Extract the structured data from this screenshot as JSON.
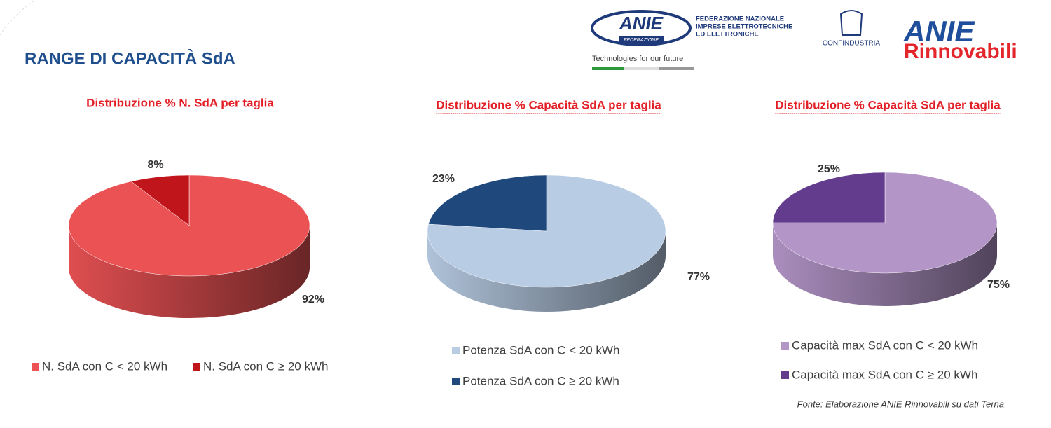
{
  "header": {
    "title": "RANGE DI CAPACITÀ SdA",
    "logo_anie": "ANIE",
    "logo_anie_sub": "FEDERAZIONE",
    "logo_federazione": [
      "FEDERAZIONE NAZIONALE",
      "IMPRESE ELETTROTECNICHE",
      "ED ELETTRONICHE"
    ],
    "logo_tagline": "Technologies for our future",
    "logo_confindustria": "CONFINDUSTRIA",
    "logo_rinnovabili": [
      "ANIE",
      "Rinnovabili"
    ]
  },
  "chart_data": [
    {
      "type": "pie",
      "title": "Distribuzione % N. SdA per taglia",
      "categories": [
        "N. SdA con C < 20 kWh",
        "N. SdA con C ≥ 20 kWh"
      ],
      "values": [
        92,
        8
      ],
      "value_labels": [
        "92%",
        "8%"
      ],
      "colors": [
        "#ea5254",
        "#c0161b"
      ],
      "legend": "bottom"
    },
    {
      "type": "pie",
      "title": "Distribuzione  % Capacità SdA per taglia",
      "categories": [
        "Potenza SdA con C < 20 kWh",
        "Potenza SdA con C ≥ 20 kWh"
      ],
      "values": [
        77,
        23
      ],
      "value_labels": [
        "77%",
        "23%"
      ],
      "colors": [
        "#b8cce4",
        "#1f497d"
      ],
      "legend": "bottom"
    },
    {
      "type": "pie",
      "title": "Distribuzione  % Capacità SdA per taglia",
      "categories": [
        "Capacità max SdA con C < 20 kWh",
        "Capacità max SdA con C ≥ 20 kWh"
      ],
      "values": [
        75,
        25
      ],
      "value_labels": [
        "75%",
        "25%"
      ],
      "colors": [
        "#b395c8",
        "#633c8d"
      ],
      "legend": "bottom"
    }
  ],
  "source": "Fonte: Elaborazione ANIE Rinnovabili su dati Terna"
}
